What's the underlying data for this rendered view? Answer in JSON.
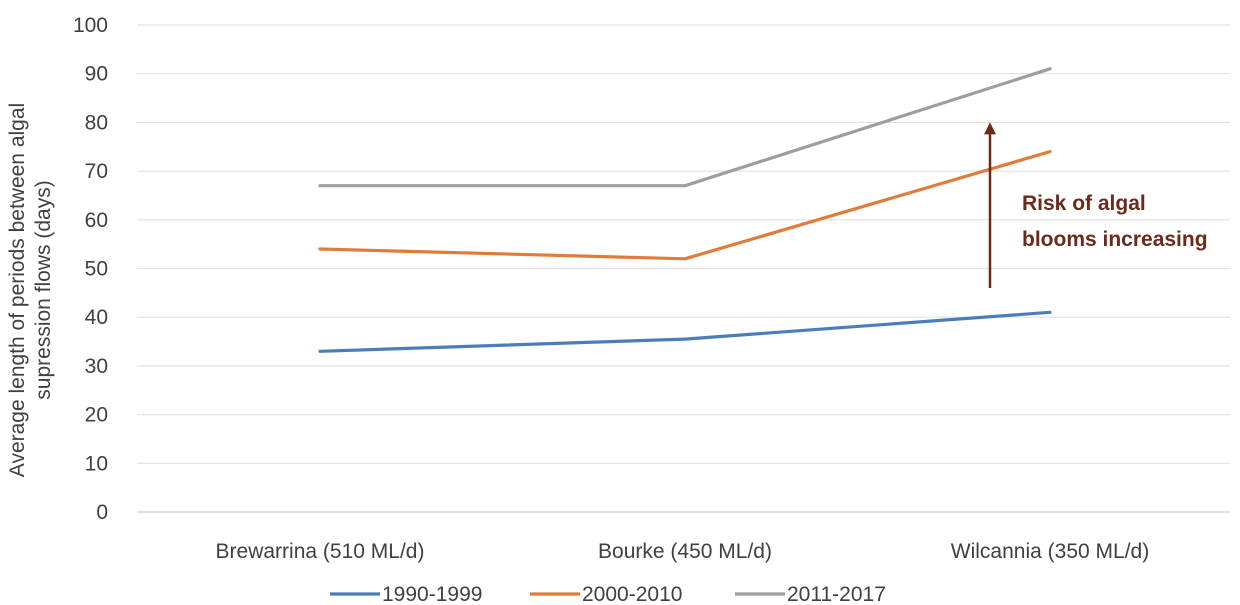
{
  "chart_data": {
    "type": "line",
    "title": "",
    "xlabel": "",
    "ylabel_lines": [
      "Average length of periods between algal",
      "supression flows (days)"
    ],
    "categories": [
      "Brewarrina (510 ML/d)",
      "Bourke (450 ML/d)",
      "Wilcannia (350 ML/d)"
    ],
    "series": [
      {
        "name": "1990-1999",
        "values": [
          33,
          35.5,
          41
        ],
        "color": "#4a7ebb"
      },
      {
        "name": "2000-2010",
        "values": [
          54,
          52,
          74
        ],
        "color": "#e07b39"
      },
      {
        "name": "2011-2017",
        "values": [
          67,
          67,
          91
        ],
        "color": "#9e9e9e"
      }
    ],
    "ylim": [
      0,
      100
    ],
    "yticks": [
      "0",
      "10",
      "20",
      "30",
      "40",
      "50",
      "60",
      "70",
      "80",
      "90",
      "100"
    ],
    "grid": true,
    "legend_position": "bottom",
    "annotation": {
      "lines": [
        "Risk of algal",
        "blooms increasing"
      ],
      "arrow_from": 46,
      "arrow_to": 80,
      "color": "#6b2a1a"
    }
  }
}
